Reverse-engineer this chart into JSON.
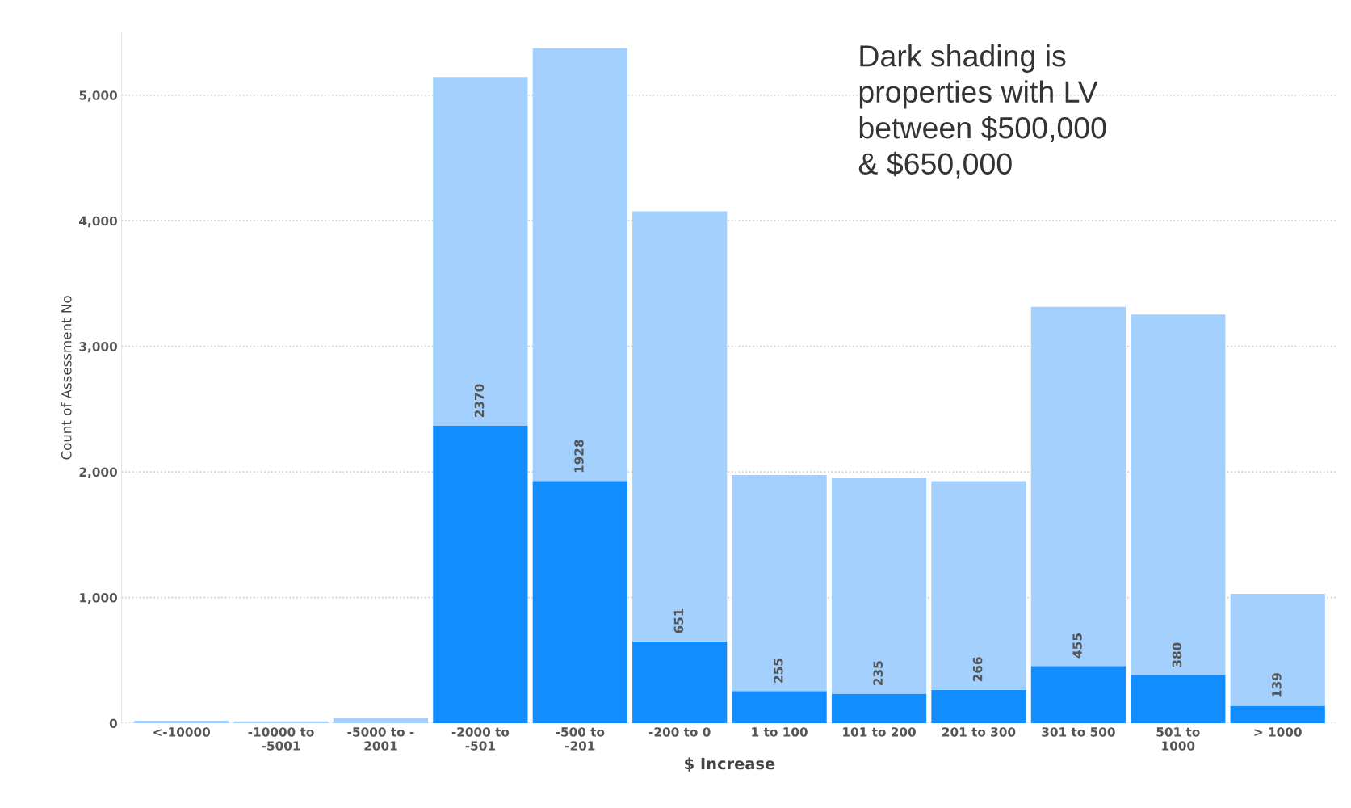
{
  "chart_data": {
    "type": "bar",
    "stacked": true,
    "xlabel": "$ Increase",
    "ylabel": "Count of Assessment No",
    "categories": [
      "<-10000",
      "-10000 to -5001",
      "-5000 to - 2001",
      "-2000 to -501",
      "-500 to -201",
      "-200 to 0",
      "1 to 100",
      "101 to 200",
      "201 to 300",
      "301 to 500",
      "501 to 1000",
      "> 1000"
    ],
    "series": [
      {
        "color": "#118dff",
        "values": [
          0,
          0,
          0,
          2370,
          1928,
          651,
          255,
          235,
          266,
          455,
          380,
          139
        ],
        "value_labels": [
          null,
          null,
          null,
          "2370",
          "1928",
          "651",
          "255",
          "235",
          "266",
          "455",
          "380",
          "139"
        ]
      },
      {
        "color": "#a3d0fd",
        "values": [
          20,
          14,
          41,
          2775,
          3445,
          3424,
          1720,
          1719,
          1661,
          2860,
          2873,
          890
        ]
      }
    ],
    "ylim": [
      0,
      5500
    ],
    "yticks": [
      {
        "value": 0,
        "label": "0"
      },
      {
        "value": 1000,
        "label": "1,000"
      },
      {
        "value": 2000,
        "label": "2,000"
      },
      {
        "value": 3000,
        "label": "3,000"
      },
      {
        "value": 4000,
        "label": "4,000"
      },
      {
        "value": 5000,
        "label": "5,000"
      }
    ],
    "grid": "y",
    "annotations": [
      "Dark shading is\nproperties with LV\nbetween $500,000\n& $650,000"
    ]
  }
}
